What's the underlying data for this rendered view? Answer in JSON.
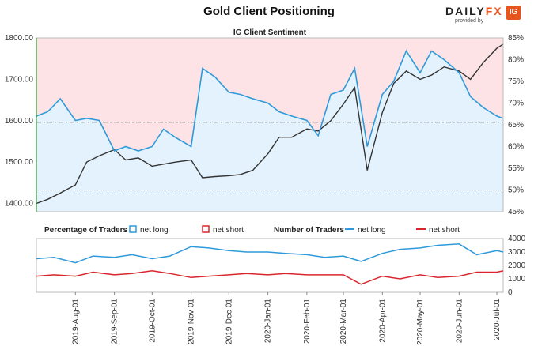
{
  "title": "Gold Client Positioning",
  "brand": {
    "name_a": "DAILY",
    "name_b": "FX",
    "sub": "provided by",
    "badge": "IG"
  },
  "chart_data": [
    {
      "type": "line",
      "title": "IG Client Sentiment",
      "price_axis": {
        "ticks": [
          "1400.00",
          "1500.00",
          "1600.00",
          "1700.00",
          "1800.00"
        ],
        "min": 1380,
        "max": 1800
      },
      "pct_axis": {
        "ticks": [
          "45%",
          "50%",
          "55%",
          "60%",
          "65%",
          "70%",
          "75%",
          "80%",
          "85%"
        ],
        "min": 45,
        "max": 85
      },
      "reference_lines_pct": [
        50,
        65.6
      ],
      "fill_colors": {
        "short_zone": "#fde3e6",
        "long_zone": "#e3f2fc"
      },
      "series": [
        {
          "name": "net long",
          "axis": "pct",
          "color": "#2e9ad9",
          "x": [
            "2019-07-01",
            "2019-07-10",
            "2019-07-20",
            "2019-08-01",
            "2019-08-10",
            "2019-08-20",
            "2019-09-01",
            "2019-09-10",
            "2019-09-20",
            "2019-10-01",
            "2019-10-10",
            "2019-10-20",
            "2019-11-01",
            "2019-11-10",
            "2019-11-20",
            "2019-12-01",
            "2019-12-10",
            "2019-12-20",
            "2020-01-01",
            "2020-01-10",
            "2020-01-20",
            "2020-02-01",
            "2020-02-10",
            "2020-02-20",
            "2020-03-01",
            "2020-03-10",
            "2020-03-20",
            "2020-04-01",
            "2020-04-10",
            "2020-04-20",
            "2020-05-01",
            "2020-05-10",
            "2020-05-20",
            "2020-06-01",
            "2020-06-10",
            "2020-06-20",
            "2020-07-01",
            "2020-07-06"
          ],
          "values": [
            67,
            68,
            71,
            66,
            66.5,
            66,
            59,
            60,
            59,
            60,
            64,
            62,
            60,
            78,
            76,
            72.5,
            72,
            71,
            70,
            68,
            67,
            66,
            62.5,
            72,
            73,
            78,
            60,
            72,
            75,
            82,
            77,
            82,
            80,
            77,
            71.5,
            69,
            67,
            66.5
          ]
        },
        {
          "name": "price",
          "axis": "price",
          "color": "#333333",
          "x": [
            "2019-07-01",
            "2019-07-10",
            "2019-07-20",
            "2019-08-01",
            "2019-08-10",
            "2019-08-20",
            "2019-09-01",
            "2019-09-10",
            "2019-09-20",
            "2019-10-01",
            "2019-10-10",
            "2019-10-20",
            "2019-11-01",
            "2019-11-10",
            "2019-11-20",
            "2019-12-01",
            "2019-12-10",
            "2019-12-20",
            "2020-01-01",
            "2020-01-10",
            "2020-01-20",
            "2020-02-01",
            "2020-02-10",
            "2020-02-20",
            "2020-03-01",
            "2020-03-10",
            "2020-03-20",
            "2020-04-01",
            "2020-04-10",
            "2020-04-20",
            "2020-05-01",
            "2020-05-10",
            "2020-05-20",
            "2020-06-01",
            "2020-06-10",
            "2020-06-20",
            "2020-07-01",
            "2020-07-06"
          ],
          "values": [
            1400,
            1410,
            1425,
            1445,
            1500,
            1515,
            1530,
            1505,
            1510,
            1490,
            1495,
            1500,
            1505,
            1462,
            1465,
            1467,
            1470,
            1480,
            1520,
            1560,
            1560,
            1580,
            1575,
            1600,
            1640,
            1680,
            1480,
            1620,
            1690,
            1720,
            1700,
            1710,
            1730,
            1720,
            1700,
            1740,
            1775,
            1785
          ]
        }
      ]
    },
    {
      "type": "line",
      "axis": {
        "ticks": [
          "0",
          "1000",
          "2000",
          "3000",
          "4000"
        ],
        "min": 0,
        "max": 4000
      },
      "x_ticks": [
        "2019-Aug-01",
        "2019-Sep-01",
        "2019-Oct-01",
        "2019-Nov-01",
        "2019-Dec-01",
        "2020-Jan-01",
        "2020-Feb-01",
        "2020-Mar-01",
        "2020-Apr-01",
        "2020-May-01",
        "2020-Jun-01",
        "2020-Jul-01"
      ],
      "legend": {
        "pct_label": "Percentage of Traders",
        "num_label": "Number of Traders",
        "net_long": "net long",
        "net_short": "net short"
      },
      "series": [
        {
          "name": "net long",
          "color": "#2e9ad9",
          "x": [
            "2019-07-01",
            "2019-07-15",
            "2019-08-01",
            "2019-08-15",
            "2019-09-01",
            "2019-09-15",
            "2019-10-01",
            "2019-10-15",
            "2019-11-01",
            "2019-11-15",
            "2019-12-01",
            "2019-12-15",
            "2020-01-01",
            "2020-01-15",
            "2020-02-01",
            "2020-02-15",
            "2020-03-01",
            "2020-03-15",
            "2020-04-01",
            "2020-04-15",
            "2020-05-01",
            "2020-05-15",
            "2020-06-01",
            "2020-06-15",
            "2020-07-01",
            "2020-07-06"
          ],
          "values": [
            2500,
            2600,
            2200,
            2700,
            2600,
            2800,
            2500,
            2700,
            3400,
            3300,
            3100,
            3000,
            3000,
            2900,
            2800,
            2600,
            2700,
            2300,
            2900,
            3200,
            3300,
            3500,
            3600,
            2800,
            3100,
            3000
          ]
        },
        {
          "name": "net short",
          "color": "#d9262e",
          "x": [
            "2019-07-01",
            "2019-07-15",
            "2019-08-01",
            "2019-08-15",
            "2019-09-01",
            "2019-09-15",
            "2019-10-01",
            "2019-10-15",
            "2019-11-01",
            "2019-11-15",
            "2019-12-01",
            "2019-12-15",
            "2020-01-01",
            "2020-01-15",
            "2020-02-01",
            "2020-02-15",
            "2020-03-01",
            "2020-03-15",
            "2020-04-01",
            "2020-04-15",
            "2020-05-01",
            "2020-05-15",
            "2020-06-01",
            "2020-06-15",
            "2020-07-01",
            "2020-07-06"
          ],
          "values": [
            1200,
            1300,
            1200,
            1500,
            1300,
            1400,
            1600,
            1400,
            1100,
            1200,
            1300,
            1400,
            1300,
            1400,
            1300,
            1300,
            1300,
            600,
            1200,
            1000,
            1300,
            1100,
            1200,
            1500,
            1500,
            1600
          ]
        }
      ]
    }
  ]
}
